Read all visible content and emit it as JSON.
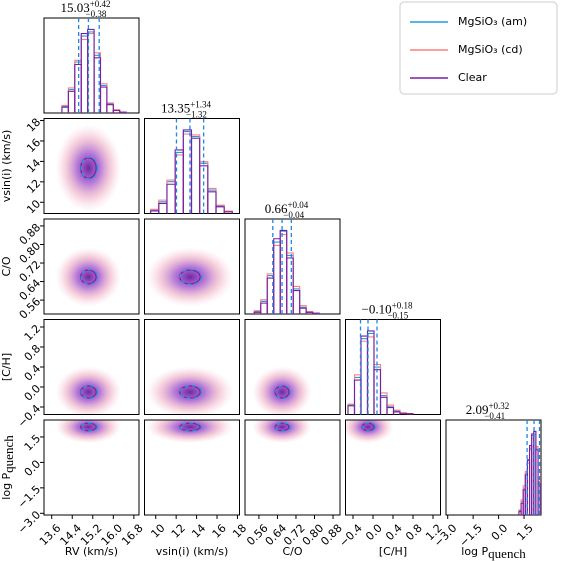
{
  "chart_data": {
    "type": "corner",
    "series": [
      {
        "name": "MgSiO₃ (am)",
        "color": "#1f9ee0"
      },
      {
        "name": "MgSiO₃ (cd)",
        "color": "#ff7f7f"
      },
      {
        "name": "Clear",
        "color": "#7b1fa2"
      }
    ],
    "parameters": [
      {
        "label": "RV (km/s)",
        "lim": [
          13.3,
          17.0
        ],
        "ticks": [
          13.6,
          14.4,
          15.2,
          {
            "value": 16,
            "label": "16.0"
          },
          16.8
        ]
      },
      {
        "label": "vsin(i) (km/s)",
        "lim": [
          8.9,
          18.2
        ],
        "ticks": [
          10,
          12,
          14,
          16,
          18
        ]
      },
      {
        "label": "C/O",
        "lim": [
          0.5,
          0.91
        ],
        "ticks": [
          0.56,
          0.64,
          0.72,
          {
            "value": 0.8,
            "label": "0.80"
          },
          0.88
        ]
      },
      {
        "label": "[C/H]",
        "lim": [
          -0.55,
          1.35
        ],
        "ticks": [
          {
            "value": -0.4,
            "label": "−0.4"
          },
          {
            "value": 0,
            "label": "0.0"
          },
          0.4,
          0.8,
          1.2
        ]
      },
      {
        "label": "log P",
        "label_sub": "quench",
        "lim": [
          -3.1,
          2.5
        ],
        "ticks": [
          {
            "value": -3,
            "label": "−3.0"
          },
          {
            "value": -1.5,
            "label": "−1.5"
          },
          {
            "value": 0,
            "label": "0.0"
          },
          1.5
        ]
      }
    ],
    "diagonals": [
      {
        "title": {
          "value": "15.03",
          "plus": "+0.42",
          "minus": "−0.38"
        },
        "quantiles": [
          14.65,
          15.03,
          15.45
        ],
        "bins": [
          14.0,
          14.25,
          14.5,
          14.75,
          15.0,
          15.25,
          15.5,
          15.75,
          16.0,
          16.25,
          16.5
        ],
        "counts": [
          [
            8,
            28,
            61,
            92,
            97,
            69,
            33,
            11,
            3,
            1
          ],
          [
            9,
            30,
            63,
            88,
            95,
            72,
            35,
            12,
            4,
            1
          ],
          [
            7,
            26,
            58,
            95,
            100,
            66,
            31,
            10,
            3,
            1
          ]
        ]
      },
      {
        "title": {
          "value": "13.35",
          "plus": "+1.34",
          "minus": "−1.32"
        },
        "quantiles": [
          12.03,
          13.35,
          14.69
        ],
        "bins": [
          9.5,
          10.3,
          11.1,
          11.9,
          12.7,
          13.5,
          14.3,
          15.1,
          15.9,
          16.7,
          17.5
        ],
        "counts": [
          [
            4,
            14,
            38,
            73,
            98,
            92,
            60,
            28,
            9,
            2
          ],
          [
            5,
            16,
            40,
            70,
            95,
            94,
            62,
            30,
            10,
            3
          ],
          [
            3,
            12,
            35,
            76,
            100,
            90,
            57,
            26,
            8,
            2
          ]
        ]
      },
      {
        "title": {
          "value": "0.66",
          "plus": "+0.04",
          "minus": "−0.04"
        },
        "quantiles": [
          0.62,
          0.66,
          0.7
        ],
        "bins": [
          0.54,
          0.568,
          0.596,
          0.624,
          0.652,
          0.68,
          0.708,
          0.736,
          0.764,
          0.792,
          0.82
        ],
        "counts": [
          [
            3,
            15,
            46,
            86,
            99,
            70,
            30,
            8,
            2,
            1
          ],
          [
            4,
            17,
            48,
            82,
            95,
            73,
            33,
            10,
            3,
            1
          ],
          [
            2,
            13,
            43,
            90,
            100,
            67,
            28,
            7,
            2,
            1
          ]
        ]
      },
      {
        "title": {
          "value": "−0.10",
          "plus": "+0.18",
          "minus": "−0.15"
        },
        "quantiles": [
          -0.25,
          -0.1,
          0.08
        ],
        "bins": [
          -0.5,
          -0.37,
          -0.24,
          -0.11,
          0.02,
          0.15,
          0.28,
          0.41,
          0.54,
          0.67,
          0.8
        ],
        "counts": [
          [
            11,
            43,
            88,
            94,
            55,
            22,
            9,
            4,
            2,
            1
          ],
          [
            12,
            46,
            85,
            90,
            58,
            25,
            11,
            5,
            2,
            1
          ],
          [
            10,
            40,
            91,
            97,
            52,
            20,
            8,
            3,
            1,
            1
          ]
        ]
      },
      {
        "title": {
          "value": "2.09",
          "plus": "+0.32",
          "minus": "−0.41"
        },
        "quantiles": [
          1.68,
          2.09,
          2.41
        ],
        "bins": [
          1.2,
          1.325,
          1.45,
          1.575,
          1.7,
          1.825,
          1.95,
          2.075,
          2.2,
          2.325,
          2.45
        ],
        "counts": [
          [
            5,
            16,
            32,
            50,
            65,
            80,
            95,
            100,
            80,
            40
          ],
          [
            6,
            18,
            35,
            52,
            62,
            78,
            92,
            96,
            82,
            45
          ],
          [
            4,
            14,
            30,
            48,
            66,
            83,
            97,
            100,
            78,
            38
          ]
        ]
      }
    ],
    "pairs": [
      {
        "center": [
          15.03,
          13.35
        ],
        "radius": [
          0.4,
          1.33
        ]
      },
      {
        "center": [
          15.03,
          0.66
        ],
        "radius": [
          0.4,
          0.04
        ]
      },
      {
        "center": [
          13.35,
          0.66
        ],
        "radius": [
          1.33,
          0.04
        ]
      },
      {
        "center": [
          15.03,
          -0.1
        ],
        "radius": [
          0.4,
          0.16
        ]
      },
      {
        "center": [
          13.35,
          -0.1
        ],
        "radius": [
          1.33,
          0.16
        ]
      },
      {
        "center": [
          0.66,
          -0.1
        ],
        "radius": [
          0.04,
          0.16
        ]
      },
      {
        "center": [
          15.03,
          2.09
        ],
        "radius": [
          0.4,
          0.3
        ]
      },
      {
        "center": [
          13.35,
          2.09
        ],
        "radius": [
          1.33,
          0.3
        ]
      },
      {
        "center": [
          0.66,
          2.09
        ],
        "radius": [
          0.04,
          0.3
        ]
      },
      {
        "center": [
          -0.1,
          2.09
        ],
        "radius": [
          0.16,
          0.3
        ]
      }
    ]
  }
}
